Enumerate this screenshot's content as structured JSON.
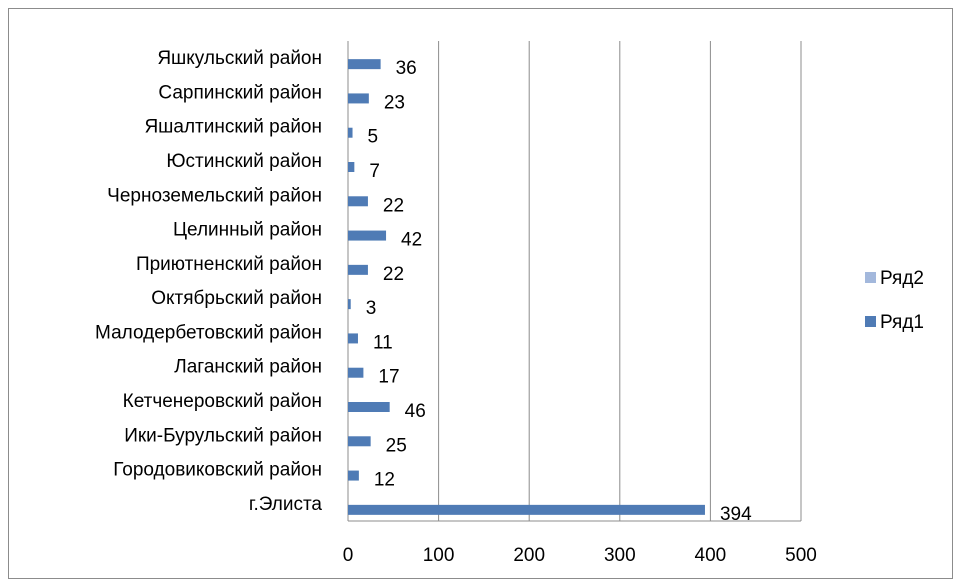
{
  "chart_data": {
    "type": "bar",
    "orientation": "horizontal",
    "categories": [
      "г.Элиста",
      "Городовиковский район",
      "Ики-Бурульский район",
      "Кетченеровский район",
      "Лаганский район",
      "Малодербетовский район",
      "Октябрьский район",
      "Приютненский район",
      "Целинный район",
      "Черноземельский район",
      "Юстинский район",
      "Яшалтинский район",
      "Сарпинский район",
      "Яшкульский район"
    ],
    "series": [
      {
        "name": "Ряд1",
        "color": "#4f7bb5",
        "values": [
          394,
          12,
          25,
          46,
          17,
          11,
          3,
          22,
          42,
          22,
          7,
          5,
          23,
          36
        ]
      },
      {
        "name": "Ряд2",
        "color": "#a3b8dc",
        "values": [
          null,
          null,
          null,
          null,
          null,
          null,
          null,
          null,
          null,
          null,
          null,
          null,
          null,
          null
        ]
      }
    ],
    "xlim": [
      0,
      500
    ],
    "xticks": [
      0,
      100,
      200,
      300,
      400,
      500
    ],
    "grid": true,
    "legend_position": "right",
    "data_labels": true,
    "title": "",
    "xlabel": "",
    "ylabel": ""
  }
}
